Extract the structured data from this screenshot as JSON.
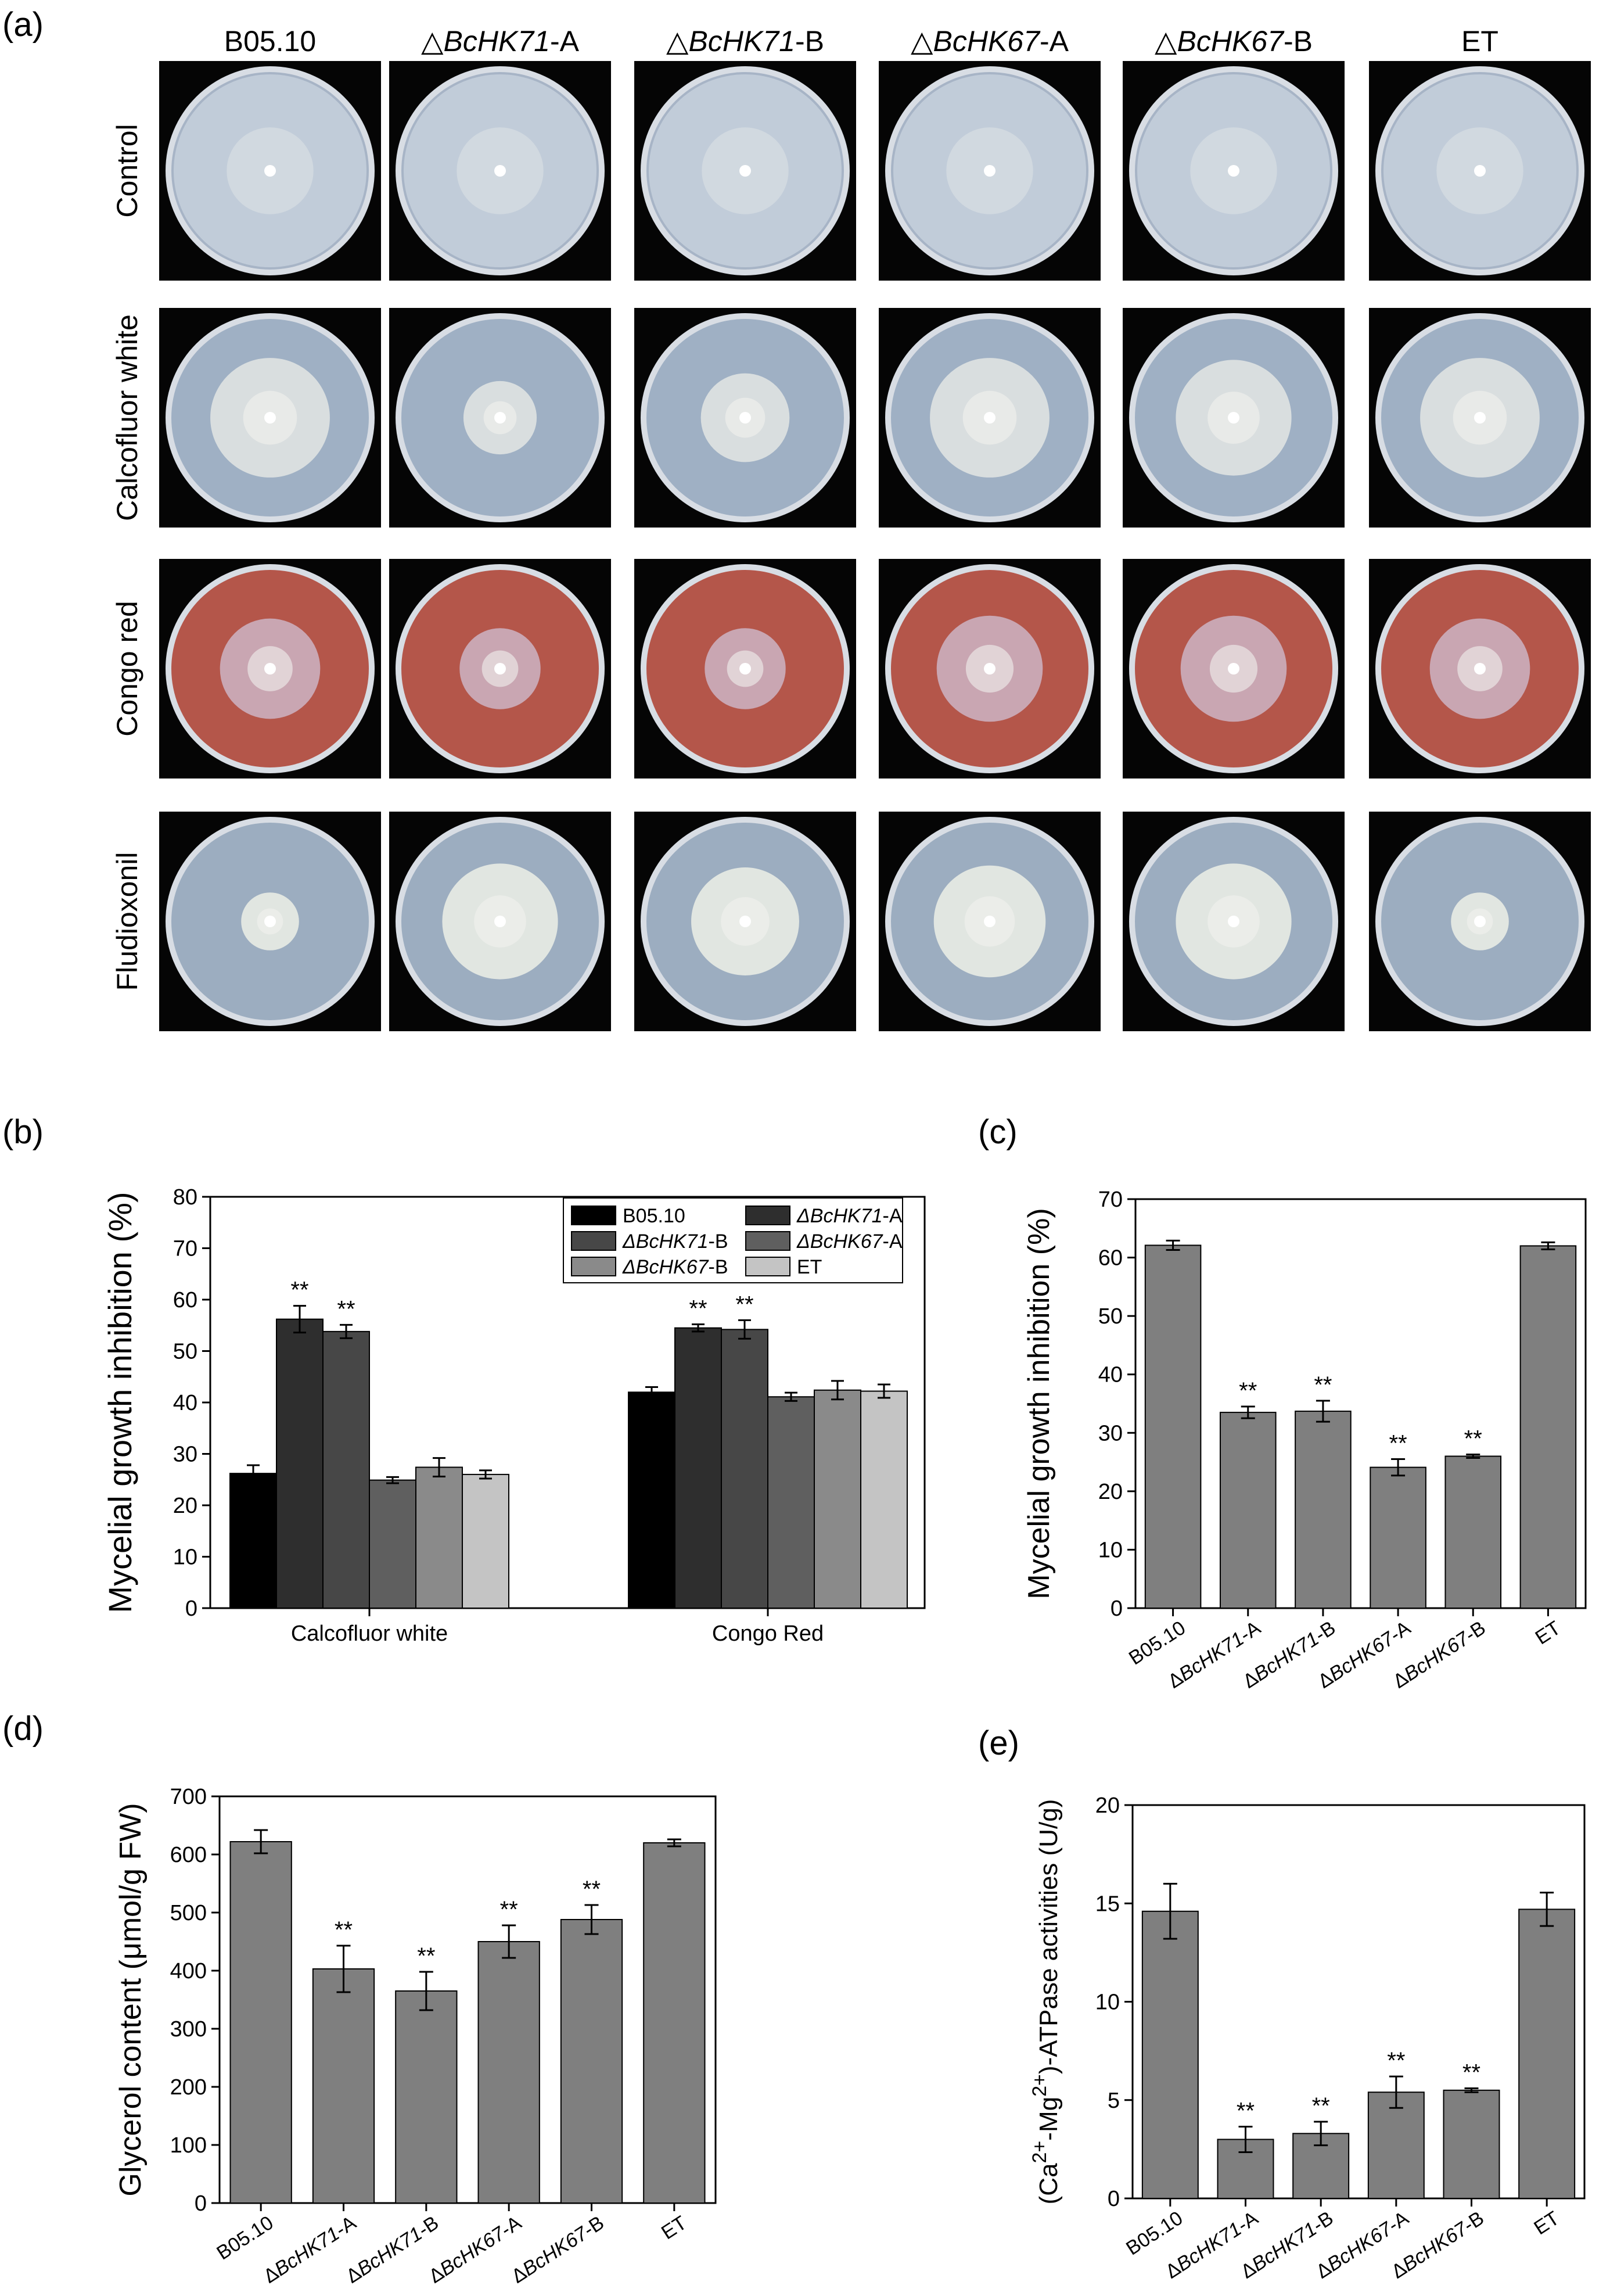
{
  "panel_a": {
    "label": "(a)",
    "columns": [
      {
        "prefix": "",
        "gene": "",
        "suffix": "B05.10"
      },
      {
        "prefix": "△",
        "gene": "BcHK71",
        "suffix": "-A"
      },
      {
        "prefix": "△",
        "gene": "BcHK71",
        "suffix": "-B"
      },
      {
        "prefix": "△",
        "gene": "BcHK67",
        "suffix": "-A"
      },
      {
        "prefix": "△",
        "gene": "BcHK67",
        "suffix": "-B"
      },
      {
        "prefix": "",
        "gene": "",
        "suffix": "ET"
      }
    ],
    "rows": [
      "Control",
      "Calcofluor white",
      "Congo red",
      "Fludioxonil"
    ],
    "colony_scale": [
      [
        1.0,
        1.0,
        1.0,
        1.0,
        1.0,
        1.0
      ],
      [
        0.62,
        0.38,
        0.46,
        0.62,
        0.6,
        0.62
      ],
      [
        0.52,
        0.42,
        0.42,
        0.55,
        0.55,
        0.52
      ],
      [
        0.3,
        0.6,
        0.56,
        0.58,
        0.6,
        0.3
      ]
    ],
    "media_colors": {
      "Control": "#a7b4c6",
      "Calcofluor white": "#9fb0c4",
      "Congo red": "#b4564a",
      "Fludioxonil": "#9cadc0"
    },
    "colony_colors": {
      "Control": "#c6d0dc",
      "Calcofluor white": "#e3e6e4",
      "Congo red": "#ccb4c4",
      "Fludioxonil": "#edf0e6"
    }
  },
  "chart_data": [
    {
      "panel": "(b)",
      "type": "bar",
      "categories": [
        "Calcofluor white",
        "Congo Red"
      ],
      "ylabel": "Mycelial growth inhibition (%)",
      "ylim": [
        0,
        80
      ],
      "yticks": [
        0,
        10,
        20,
        30,
        40,
        50,
        60,
        70,
        80
      ],
      "legend_position": "top-right",
      "series": [
        {
          "name": {
            "gene": "",
            "suffix": "B05.10"
          },
          "color": "#000000",
          "values": [
            26.2,
            42.0
          ],
          "errors": [
            1.6,
            1.0
          ],
          "marks": [
            "",
            ""
          ]
        },
        {
          "name": {
            "gene": "ΔBcHK71",
            "suffix": "-A"
          },
          "color": "#2e2e2e",
          "values": [
            56.2,
            54.5
          ],
          "errors": [
            2.6,
            0.7
          ],
          "marks": [
            "**",
            "**"
          ]
        },
        {
          "name": {
            "gene": "ΔBcHK71",
            "suffix": "-B"
          },
          "color": "#474747",
          "values": [
            53.8,
            54.2
          ],
          "errors": [
            1.3,
            1.8
          ],
          "marks": [
            "**",
            "**"
          ]
        },
        {
          "name": {
            "gene": "ΔBcHK67",
            "suffix": "-A"
          },
          "color": "#5f5f5f",
          "values": [
            24.9,
            41.1
          ],
          "errors": [
            0.6,
            0.8
          ],
          "marks": [
            "",
            ""
          ]
        },
        {
          "name": {
            "gene": "ΔBcHK67",
            "suffix": "-B"
          },
          "color": "#8a8a8a",
          "values": [
            27.4,
            42.4
          ],
          "errors": [
            1.8,
            1.8
          ],
          "marks": [
            "",
            ""
          ]
        },
        {
          "name": {
            "gene": "",
            "suffix": "ET"
          },
          "color": "#c4c4c4",
          "values": [
            26.0,
            42.2
          ],
          "errors": [
            0.8,
            1.3
          ],
          "marks": [
            "",
            ""
          ]
        }
      ]
    },
    {
      "panel": "(c)",
      "type": "bar",
      "categories": [
        "B05.10",
        "ΔBcHK71-A",
        "ΔBcHK71-B",
        "ΔBcHK67-A",
        "ΔBcHK67-B",
        "ET"
      ],
      "ylabel": "Mycelial growth inhibition (%)",
      "ylim": [
        0,
        70
      ],
      "yticks": [
        0,
        10,
        20,
        30,
        40,
        50,
        60,
        70
      ],
      "values": [
        62.1,
        33.5,
        33.7,
        24.1,
        26.0,
        62.0
      ],
      "errors": [
        0.8,
        1.0,
        1.8,
        1.4,
        0.3,
        0.6
      ],
      "marks": [
        "",
        "**",
        "**",
        "**",
        "**",
        ""
      ],
      "color": "#7f7f7f"
    },
    {
      "panel": "(d)",
      "type": "bar",
      "categories": [
        "B05.10",
        "ΔBcHK71-A",
        "ΔBcHK71-B",
        "ΔBcHK67-A",
        "ΔBcHK67-B",
        "ET"
      ],
      "ylabel": "Glycerol content (μmol/g FW)",
      "ylim": [
        0,
        700
      ],
      "yticks": [
        0,
        100,
        200,
        300,
        400,
        500,
        600,
        700
      ],
      "values": [
        622,
        403,
        365,
        450,
        488,
        620
      ],
      "errors": [
        20,
        40,
        33,
        28,
        25,
        6
      ],
      "marks": [
        "",
        "**",
        "**",
        "**",
        "**",
        ""
      ],
      "color": "#7f7f7f"
    },
    {
      "panel": "(e)",
      "type": "bar",
      "categories": [
        "B05.10",
        "ΔBcHK71-A",
        "ΔBcHK71-B",
        "ΔBcHK67-A",
        "ΔBcHK67-B",
        "ET"
      ],
      "ylabel": "(Ca2+-Mg2+)-ATPase activities (U/g)",
      "ylim": [
        0,
        20
      ],
      "yticks": [
        0,
        5,
        10,
        15,
        20
      ],
      "values": [
        14.6,
        3.0,
        3.3,
        5.4,
        5.5,
        14.7
      ],
      "errors": [
        1.4,
        0.65,
        0.6,
        0.8,
        0.1,
        0.85
      ],
      "marks": [
        "",
        "**",
        "**",
        "**",
        "**",
        ""
      ],
      "color": "#7f7f7f"
    }
  ]
}
